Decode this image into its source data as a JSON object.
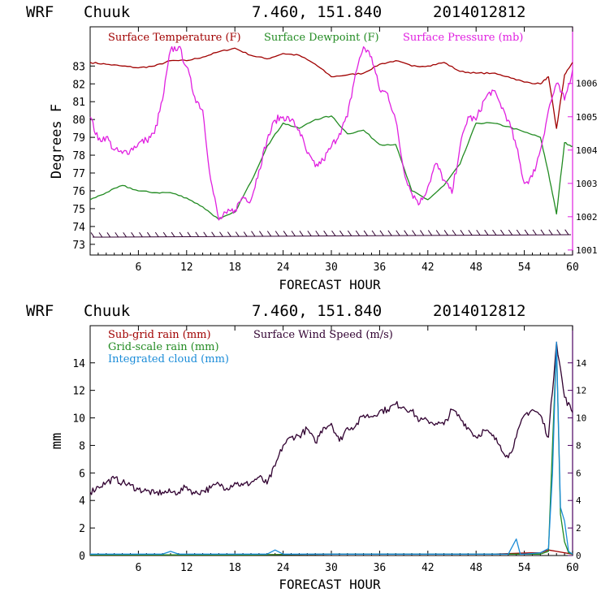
{
  "header": {
    "model": "WRF",
    "station": "Chuuk",
    "coords": "7.460, 151.840",
    "init": "2014012812"
  },
  "colors": {
    "temperature": "#a00000",
    "dewpoint": "#228b22",
    "pressure": "#e020e0",
    "wind": "#300030",
    "subgrid": "#a00000",
    "gridscale": "#228b22",
    "cloud": "#1a8cd8",
    "rightaxis": "#e020e0",
    "bottom_rightaxis": "#4b0060"
  },
  "chart_data": [
    {
      "type": "line",
      "title": "WRF Chuuk 7.460, 151.840 2014012812",
      "xlabel": "FORECAST HOUR",
      "ylabel": "Degrees F",
      "y2label": "",
      "xlim": [
        0,
        60
      ],
      "ylim": [
        72.4,
        85.2
      ],
      "y2lim": [
        1000.85,
        1007.7
      ],
      "x_ticks": [
        6,
        12,
        18,
        24,
        30,
        36,
        42,
        48,
        54,
        60
      ],
      "y_ticks": [
        73,
        74,
        75,
        76,
        77,
        78,
        79,
        80,
        81,
        82,
        83
      ],
      "y2_ticks": [
        1001,
        1002,
        1003,
        1004,
        1005,
        1006
      ],
      "legend": [
        "Surface Temperature (F)",
        "Surface Dewpoint (F)",
        "Surface Pressure (mb)"
      ],
      "wind_barbs_level": 73.4,
      "series": [
        {
          "name": "Surface Temperature (F)",
          "axis": "left",
          "x": [
            0,
            2,
            4,
            6,
            8,
            10,
            12,
            14,
            16,
            18,
            20,
            22,
            24,
            26,
            28,
            30,
            32,
            34,
            36,
            38,
            40,
            42,
            44,
            46,
            48,
            50,
            52,
            54,
            56,
            57,
            58,
            59,
            60
          ],
          "values": [
            83.2,
            83.1,
            83.0,
            82.9,
            83.0,
            83.3,
            83.3,
            83.5,
            83.8,
            84.0,
            83.6,
            83.4,
            83.7,
            83.6,
            83.1,
            82.4,
            82.5,
            82.6,
            83.1,
            83.3,
            83.0,
            83.0,
            83.2,
            82.7,
            82.6,
            82.6,
            82.4,
            82.1,
            82.0,
            82.4,
            79.5,
            82.5,
            83.2
          ]
        },
        {
          "name": "Surface Dewpoint (F)",
          "axis": "left",
          "x": [
            0,
            2,
            4,
            6,
            8,
            10,
            12,
            14,
            16,
            18,
            20,
            22,
            24,
            26,
            28,
            30,
            32,
            34,
            36,
            38,
            40,
            42,
            44,
            46,
            48,
            50,
            52,
            54,
            56,
            57,
            58,
            59,
            60
          ],
          "values": [
            75.5,
            75.9,
            76.3,
            76.0,
            75.9,
            75.9,
            75.6,
            75.1,
            74.4,
            74.8,
            76.5,
            78.5,
            79.8,
            79.5,
            80.0,
            80.2,
            79.2,
            79.4,
            78.6,
            78.6,
            76.0,
            75.5,
            76.3,
            77.5,
            79.8,
            79.8,
            79.6,
            79.3,
            79.0,
            77.0,
            74.7,
            78.7,
            78.5
          ]
        },
        {
          "name": "Surface Pressure (mb)",
          "axis": "right",
          "x": [
            0,
            1,
            2,
            3,
            4,
            5,
            6,
            7,
            8,
            9,
            10,
            11,
            12,
            13,
            14,
            15,
            16,
            17,
            18,
            19,
            20,
            21,
            22,
            23,
            24,
            25,
            26,
            27,
            28,
            29,
            30,
            31,
            32,
            33,
            34,
            35,
            36,
            37,
            38,
            39,
            40,
            41,
            42,
            43,
            44,
            45,
            46,
            47,
            48,
            49,
            50,
            51,
            52,
            53,
            54,
            55,
            56,
            57,
            58,
            59,
            60
          ],
          "values": [
            1005.0,
            1004.3,
            1004.4,
            1004.0,
            1003.9,
            1004.0,
            1004.2,
            1004.3,
            1004.5,
            1005.5,
            1007.0,
            1007.1,
            1006.5,
            1005.6,
            1005.2,
            1003.1,
            1001.9,
            1002.1,
            1002.2,
            1002.6,
            1002.5,
            1003.4,
            1004.3,
            1004.9,
            1005.0,
            1004.9,
            1004.6,
            1003.9,
            1003.5,
            1003.7,
            1004.1,
            1004.5,
            1005.0,
            1006.3,
            1007.1,
            1006.8,
            1005.8,
            1005.7,
            1004.9,
            1003.4,
            1002.7,
            1002.4,
            1002.9,
            1003.6,
            1003.1,
            1002.7,
            1004.1,
            1005.0,
            1004.9,
            1005.5,
            1005.8,
            1005.4,
            1004.9,
            1004.1,
            1003.0,
            1003.2,
            1004.0,
            1005.2,
            1006.0,
            1005.5,
            1006.4
          ]
        }
      ]
    },
    {
      "type": "line",
      "title": "WRF Chuuk 7.460, 151.840 2014012812",
      "xlabel": "FORECAST HOUR",
      "ylabel": "mm",
      "xlim": [
        0,
        60
      ],
      "ylim": [
        0,
        16.7
      ],
      "y2lim": [
        0,
        16.7
      ],
      "x_ticks": [
        6,
        12,
        18,
        24,
        30,
        36,
        42,
        48,
        54,
        60
      ],
      "y_ticks": [
        0,
        2,
        4,
        6,
        8,
        10,
        12,
        14
      ],
      "y2_ticks": [
        0,
        2,
        4,
        6,
        8,
        10,
        12,
        14
      ],
      "legend": [
        "Sub-grid rain (mm)",
        "Surface Wind Speed (m/s)",
        "Grid-scale rain (mm)",
        "Integrated cloud (mm)"
      ],
      "series": [
        {
          "name": "Surface Wind Speed (m/s)",
          "axis": "right",
          "x": [
            0,
            1,
            2,
            3,
            4,
            5,
            6,
            7,
            8,
            9,
            10,
            11,
            12,
            13,
            14,
            15,
            16,
            17,
            18,
            19,
            20,
            21,
            22,
            23,
            24,
            25,
            26,
            27,
            28,
            29,
            30,
            31,
            32,
            33,
            34,
            35,
            36,
            37,
            38,
            39,
            40,
            41,
            42,
            43,
            44,
            45,
            46,
            47,
            48,
            49,
            50,
            51,
            52,
            53,
            54,
            55,
            56,
            57,
            58,
            59,
            60
          ],
          "values": [
            4.6,
            5.0,
            5.3,
            5.6,
            5.3,
            5.1,
            4.8,
            4.7,
            4.5,
            4.6,
            4.6,
            4.6,
            5.0,
            4.5,
            4.7,
            4.9,
            5.2,
            4.9,
            5.3,
            5.1,
            5.3,
            5.7,
            5.2,
            6.5,
            8.0,
            8.6,
            8.7,
            9.2,
            8.2,
            9.3,
            9.6,
            8.3,
            9.3,
            9.4,
            10.2,
            10.1,
            10.5,
            10.6,
            11.0,
            10.8,
            10.5,
            9.8,
            9.8,
            9.6,
            9.5,
            10.6,
            10.0,
            9.3,
            8.6,
            9.1,
            8.7,
            8.0,
            7.1,
            8.6,
            10.2,
            10.6,
            10.2,
            8.6,
            15.5,
            11.5,
            10.4
          ]
        },
        {
          "name": "Sub-grid rain (mm)",
          "axis": "left",
          "x": [
            0,
            10,
            20,
            30,
            40,
            50,
            55,
            56,
            57,
            58,
            59,
            60
          ],
          "values": [
            0.05,
            0.05,
            0.05,
            0.1,
            0.1,
            0.1,
            0.2,
            0.2,
            0.4,
            0.3,
            0.2,
            0.1
          ]
        },
        {
          "name": "Grid-scale rain (mm)",
          "axis": "left",
          "x": [
            0,
            10,
            20,
            30,
            40,
            50,
            55,
            56,
            57,
            57.5,
            58,
            58.5,
            59,
            59.5,
            60
          ],
          "values": [
            0.05,
            0.05,
            0.05,
            0.1,
            0.1,
            0.1,
            0.1,
            0.1,
            0.3,
            8.0,
            15.3,
            3.0,
            1.0,
            0.2,
            0.1
          ]
        },
        {
          "name": "Integrated cloud (mm)",
          "axis": "left",
          "x": [
            0,
            9,
            10,
            11,
            22,
            23,
            24,
            52,
            53,
            53.5,
            54,
            56,
            57,
            57.5,
            58,
            58.5,
            59,
            59.5,
            60
          ],
          "values": [
            0.1,
            0.1,
            0.3,
            0.1,
            0.1,
            0.4,
            0.1,
            0.1,
            1.2,
            0.1,
            0.1,
            0.2,
            0.5,
            6.0,
            15.5,
            3.5,
            2.5,
            0.3,
            0.1
          ]
        }
      ]
    }
  ]
}
